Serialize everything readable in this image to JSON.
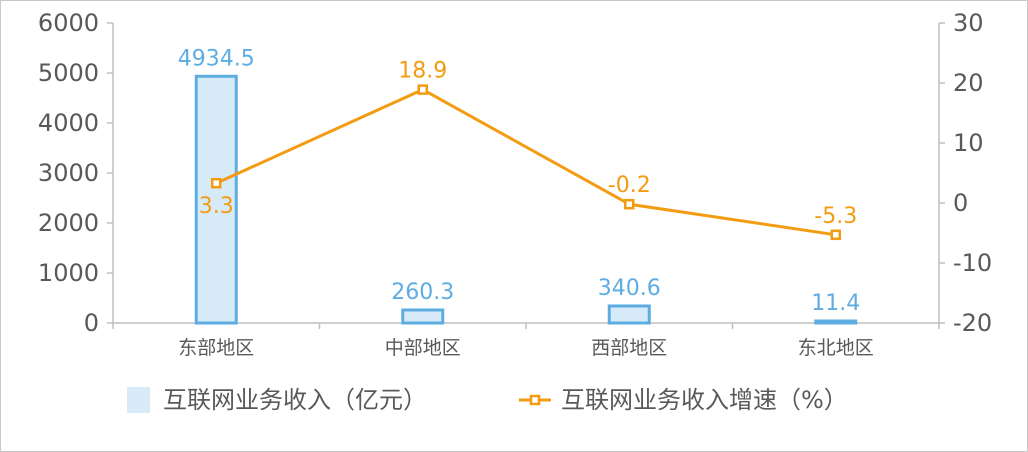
{
  "chart_data": {
    "type": "bar",
    "categories": [
      "东部地区",
      "中部地区",
      "西部地区",
      "东北地区"
    ],
    "series": [
      {
        "name": "互联网业务收入（亿元）",
        "type": "bar",
        "axis": "left",
        "values": [
          4934.5,
          260.3,
          340.6,
          11.4
        ],
        "labels": [
          "4934.5",
          "260.3",
          "340.6",
          "11.4"
        ],
        "color": "#5dade2",
        "fill": "#d6eaf8"
      },
      {
        "name": "互联网业务收入增速（%）",
        "type": "line",
        "axis": "right",
        "values": [
          3.3,
          18.9,
          -0.2,
          -5.3
        ],
        "labels": [
          "3.3",
          "18.9",
          "-0.2",
          "-5.3"
        ],
        "color": "#f39c12"
      }
    ],
    "y_left": {
      "ylim": [
        0,
        6000
      ],
      "ticks": [
        "0",
        "1000",
        "2000",
        "3000",
        "4000",
        "5000",
        "6000"
      ]
    },
    "y_right": {
      "ylim": [
        -20,
        30
      ],
      "ticks": [
        "-20",
        "-10",
        "0",
        "10",
        "20",
        "30"
      ]
    },
    "legend": {
      "position": "bottom",
      "items": [
        "互联网业务收入（亿元）",
        "互联网业务收入增速（%）"
      ]
    },
    "grid": false
  }
}
